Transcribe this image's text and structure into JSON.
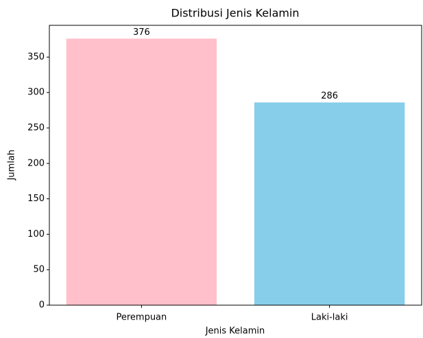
{
  "chart_data": {
    "type": "bar",
    "title": "Distribusi Jenis Kelamin",
    "x_label": "Jenis Kelamin",
    "y_label": "Jumlah",
    "categories": [
      "Perempuan",
      "Laki-laki"
    ],
    "values": [
      376,
      286
    ],
    "colors": [
      "#ffc0cb",
      "#87ceeb"
    ],
    "ylim": [
      0,
      394.8
    ],
    "yticks": [
      0,
      50,
      100,
      150,
      200,
      250,
      300,
      350
    ]
  }
}
